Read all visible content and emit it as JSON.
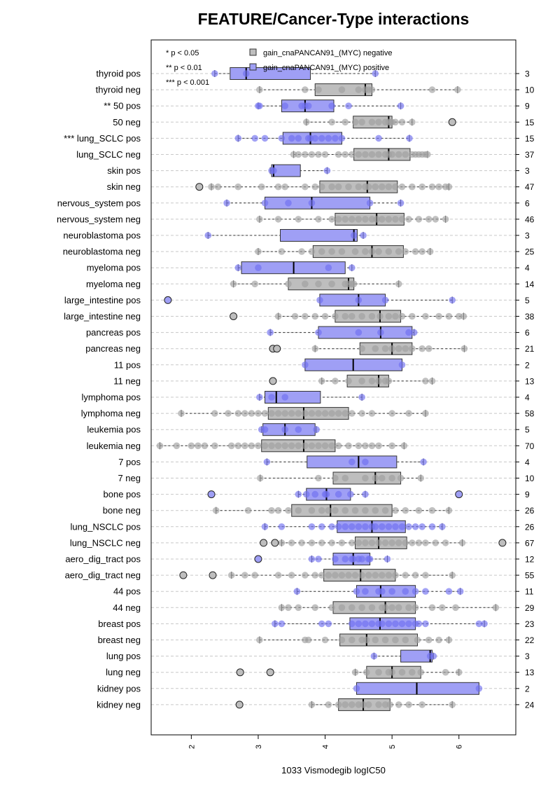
{
  "chart_data": {
    "type": "boxplot",
    "title": "FEATURE/Cancer-Type interactions",
    "xlabel": "1033 Vismodegib logIC50",
    "xlim": [
      1.4,
      6.85
    ],
    "xticks": [
      2,
      3,
      4,
      5,
      6
    ],
    "grid": "horizontal dashed",
    "colors": {
      "pos_fill": "#9f9ff5",
      "pos_point": "#7070f0",
      "neg_fill": "#bebebe",
      "neg_point": "#a0a0a0"
    },
    "significance_legend": [
      "* p < 0.05",
      "** p < 0.01",
      "*** p < 0.001"
    ],
    "series_legend": [
      {
        "label": "gain_cnaPANCAN91_(MYC) negative",
        "color": "#bebebe"
      },
      {
        "label": "gain_cnaPANCAN91_(MYC) positive",
        "color": "#9f9ff5"
      }
    ],
    "rows": [
      {
        "label": "thyroid pos",
        "group": "pos",
        "n": 3,
        "q1": 2.58,
        "median": 2.82,
        "q3": 3.78,
        "wlo": 2.35,
        "whi": 4.75,
        "points": [
          2.35,
          2.82,
          4.75
        ],
        "outliers": []
      },
      {
        "label": "thyroid neg",
        "group": "neg",
        "n": 10,
        "q1": 3.85,
        "median": 4.6,
        "q3": 4.7,
        "wlo": 3.02,
        "whi": 5.98,
        "points": [
          3.02,
          3.7,
          3.9,
          4.25,
          4.5,
          4.6,
          4.65,
          4.7,
          5.6,
          5.98
        ],
        "outliers": []
      },
      {
        "label": "** 50 pos",
        "group": "pos",
        "n": 9,
        "q1": 3.35,
        "median": 3.7,
        "q3": 4.13,
        "wlo": 3.0,
        "whi": 5.13,
        "points": [
          3.0,
          3.02,
          3.4,
          3.65,
          3.7,
          3.75,
          4.1,
          4.35,
          5.13
        ],
        "outliers": []
      },
      {
        "label": "50 neg",
        "group": "neg",
        "n": 15,
        "q1": 4.42,
        "median": 4.95,
        "q3": 5.0,
        "wlo": 3.72,
        "whi": 5.3,
        "points": [
          3.72,
          4.1,
          4.3,
          4.45,
          4.55,
          4.7,
          4.8,
          4.9,
          4.95,
          4.98,
          5.0,
          5.05,
          5.15,
          5.3
        ],
        "outliers": [
          5.9
        ]
      },
      {
        "label": "*** lung_SCLC pos",
        "group": "pos",
        "n": 15,
        "q1": 3.37,
        "median": 3.78,
        "q3": 4.25,
        "wlo": 2.7,
        "whi": 5.26,
        "points": [
          2.7,
          2.95,
          3.1,
          3.35,
          3.5,
          3.6,
          3.75,
          3.78,
          3.85,
          3.95,
          4.05,
          4.15,
          4.25,
          4.8,
          5.26
        ],
        "outliers": []
      },
      {
        "label": "lung_SCLC neg",
        "group": "neg",
        "n": 37,
        "q1": 4.43,
        "median": 4.95,
        "q3": 5.27,
        "wlo": 3.53,
        "whi": 5.53,
        "points": [
          3.53,
          3.6,
          3.7,
          3.8,
          3.9,
          4.0,
          4.2,
          4.3,
          4.4,
          4.5,
          4.6,
          4.7,
          4.8,
          4.9,
          4.95,
          5.0,
          5.1,
          5.2,
          5.3,
          5.35,
          5.4,
          5.45,
          5.5,
          5.53
        ],
        "outliers": []
      },
      {
        "label": "skin pos",
        "group": "pos",
        "n": 3,
        "q1": 3.2,
        "median": 3.23,
        "q3": 3.63,
        "wlo": 3.18,
        "whi": 4.03,
        "points": [
          3.2,
          3.23,
          4.03
        ],
        "outliers": []
      },
      {
        "label": "skin neg",
        "group": "neg",
        "n": 47,
        "q1": 3.92,
        "median": 4.63,
        "q3": 5.08,
        "wlo": 2.3,
        "whi": 5.85,
        "points": [
          2.3,
          2.4,
          2.7,
          3.05,
          3.3,
          3.4,
          3.7,
          3.85,
          3.95,
          4.1,
          4.2,
          4.35,
          4.5,
          4.6,
          4.65,
          4.75,
          4.85,
          4.95,
          5.05,
          5.15,
          5.3,
          5.45,
          5.6,
          5.7,
          5.8,
          5.85
        ],
        "outliers": [
          2.12
        ]
      },
      {
        "label": "nervous_system pos",
        "group": "pos",
        "n": 6,
        "q1": 3.1,
        "median": 3.8,
        "q3": 4.67,
        "wlo": 2.53,
        "whi": 5.13,
        "points": [
          2.53,
          3.1,
          3.45,
          3.8,
          4.67,
          5.13
        ],
        "outliers": []
      },
      {
        "label": "nervous_system neg",
        "group": "neg",
        "n": 46,
        "q1": 4.15,
        "median": 4.77,
        "q3": 5.18,
        "wlo": 3.02,
        "whi": 5.8,
        "points": [
          3.02,
          3.3,
          3.6,
          3.9,
          4.1,
          4.2,
          4.3,
          4.4,
          4.5,
          4.6,
          4.7,
          4.77,
          4.85,
          4.95,
          5.05,
          5.15,
          5.25,
          5.4,
          5.55,
          5.65,
          5.8
        ],
        "outliers": []
      },
      {
        "label": "neuroblastoma pos",
        "group": "pos",
        "n": 3,
        "q1": 3.33,
        "median": 4.43,
        "q3": 4.48,
        "wlo": 2.25,
        "whi": 4.57,
        "points": [
          2.25,
          4.43,
          4.57
        ],
        "outliers": []
      },
      {
        "label": "neuroblastoma neg",
        "group": "neg",
        "n": 25,
        "q1": 3.82,
        "median": 4.7,
        "q3": 5.17,
        "wlo": 3.0,
        "whi": 5.57,
        "points": [
          3.0,
          3.35,
          3.65,
          3.8,
          3.95,
          4.1,
          4.25,
          4.45,
          4.6,
          4.7,
          4.8,
          4.95,
          5.1,
          5.2,
          5.35,
          5.45,
          5.57
        ],
        "outliers": []
      },
      {
        "label": "myeloma pos",
        "group": "pos",
        "n": 4,
        "q1": 2.75,
        "median": 3.53,
        "q3": 4.3,
        "wlo": 2.7,
        "whi": 4.4,
        "points": [
          2.7,
          3.0,
          4.05,
          4.4
        ],
        "outliers": []
      },
      {
        "label": "myeloma neg",
        "group": "neg",
        "n": 14,
        "q1": 3.45,
        "median": 4.35,
        "q3": 4.43,
        "wlo": 2.63,
        "whi": 5.1,
        "points": [
          2.63,
          2.95,
          3.45,
          3.7,
          3.9,
          4.1,
          4.3,
          4.35,
          4.4,
          4.43,
          5.1
        ],
        "outliers": []
      },
      {
        "label": "large_intestine pos",
        "group": "pos",
        "n": 5,
        "q1": 3.92,
        "median": 4.5,
        "q3": 4.9,
        "wlo": 3.92,
        "whi": 5.9,
        "points": [
          3.92,
          4.5,
          4.9,
          5.9
        ],
        "outliers": [
          1.65
        ]
      },
      {
        "label": "large_intestine neg",
        "group": "neg",
        "n": 38,
        "q1": 4.15,
        "median": 4.82,
        "q3": 5.13,
        "wlo": 3.3,
        "whi": 6.07,
        "points": [
          3.3,
          3.55,
          3.7,
          3.85,
          4.0,
          4.15,
          4.3,
          4.4,
          4.55,
          4.7,
          4.82,
          4.95,
          5.05,
          5.15,
          5.3,
          5.5,
          5.7,
          5.85,
          6.0,
          6.07
        ],
        "outliers": [
          2.63
        ]
      },
      {
        "label": "pancreas pos",
        "group": "pos",
        "n": 6,
        "q1": 3.9,
        "median": 4.83,
        "q3": 5.3,
        "wlo": 3.18,
        "whi": 5.33,
        "points": [
          3.18,
          3.9,
          4.5,
          4.83,
          5.25,
          5.33
        ],
        "outliers": []
      },
      {
        "label": "pancreas neg",
        "group": "neg",
        "n": 21,
        "q1": 4.52,
        "median": 5.0,
        "q3": 5.3,
        "wlo": 3.85,
        "whi": 6.08,
        "points": [
          3.85,
          4.55,
          4.75,
          4.9,
          5.0,
          5.1,
          5.2,
          5.3,
          5.45,
          5.55,
          6.08
        ],
        "outliers": [
          3.22,
          3.28
        ]
      },
      {
        "label": "11 pos",
        "group": "pos",
        "n": 2,
        "q1": 3.7,
        "median": 4.42,
        "q3": 5.15,
        "wlo": 3.7,
        "whi": 5.15,
        "points": [
          3.7,
          5.15
        ],
        "outliers": []
      },
      {
        "label": "11 neg",
        "group": "neg",
        "n": 13,
        "q1": 4.33,
        "median": 4.8,
        "q3": 4.95,
        "wlo": 3.95,
        "whi": 5.6,
        "points": [
          3.95,
          4.15,
          4.35,
          4.55,
          4.7,
          4.8,
          4.9,
          4.95,
          5.5,
          5.6
        ],
        "outliers": [
          3.22
        ]
      },
      {
        "label": "lymphoma pos",
        "group": "pos",
        "n": 4,
        "q1": 3.1,
        "median": 3.27,
        "q3": 3.93,
        "wlo": 3.02,
        "whi": 4.55,
        "points": [
          3.02,
          3.2,
          3.4,
          4.55
        ],
        "outliers": []
      },
      {
        "label": "lymphoma neg",
        "group": "neg",
        "n": 58,
        "q1": 3.15,
        "median": 3.68,
        "q3": 4.35,
        "wlo": 1.85,
        "whi": 5.5,
        "points": [
          1.85,
          2.35,
          2.55,
          2.7,
          2.8,
          2.9,
          3.0,
          3.1,
          3.2,
          3.3,
          3.4,
          3.5,
          3.6,
          3.7,
          3.8,
          3.9,
          4.0,
          4.1,
          4.2,
          4.3,
          4.4,
          4.55,
          4.7,
          5.0,
          5.25,
          5.5
        ],
        "outliers": []
      },
      {
        "label": "leukemia pos",
        "group": "pos",
        "n": 5,
        "q1": 3.07,
        "median": 3.4,
        "q3": 3.85,
        "wlo": 3.05,
        "whi": 3.87,
        "points": [
          3.05,
          3.1,
          3.4,
          3.6,
          3.87
        ],
        "outliers": []
      },
      {
        "label": "leukemia neg",
        "group": "neg",
        "n": 70,
        "q1": 3.05,
        "median": 3.68,
        "q3": 4.15,
        "wlo": 1.53,
        "whi": 5.18,
        "points": [
          1.53,
          1.78,
          2.0,
          2.1,
          2.2,
          2.35,
          2.6,
          2.7,
          2.8,
          2.9,
          3.0,
          3.1,
          3.2,
          3.3,
          3.4,
          3.5,
          3.6,
          3.7,
          3.8,
          3.9,
          4.0,
          4.1,
          4.2,
          4.35,
          4.5,
          4.6,
          4.7,
          4.8,
          5.0,
          5.18
        ],
        "outliers": []
      },
      {
        "label": "7 pos",
        "group": "pos",
        "n": 4,
        "q1": 3.73,
        "median": 4.5,
        "q3": 5.07,
        "wlo": 3.13,
        "whi": 5.47,
        "points": [
          3.13,
          4.4,
          4.6,
          5.47
        ],
        "outliers": []
      },
      {
        "label": "7 neg",
        "group": "neg",
        "n": 10,
        "q1": 4.12,
        "median": 4.75,
        "q3": 5.13,
        "wlo": 3.03,
        "whi": 5.43,
        "points": [
          3.03,
          3.9,
          4.15,
          4.3,
          4.6,
          4.75,
          4.85,
          5.0,
          5.13,
          5.43
        ],
        "outliers": []
      },
      {
        "label": "bone pos",
        "group": "pos",
        "n": 9,
        "q1": 3.72,
        "median": 4.02,
        "q3": 4.38,
        "wlo": 3.6,
        "whi": 4.6,
        "points": [
          3.6,
          3.72,
          3.85,
          4.0,
          4.02,
          4.2,
          4.38,
          4.6
        ],
        "outliers": [
          2.3,
          6.0
        ]
      },
      {
        "label": "bone neg",
        "group": "neg",
        "n": 26,
        "q1": 3.5,
        "median": 4.08,
        "q3": 5.0,
        "wlo": 2.37,
        "whi": 5.85,
        "points": [
          2.37,
          2.85,
          3.2,
          3.3,
          3.45,
          3.6,
          3.8,
          3.95,
          4.05,
          4.15,
          4.3,
          4.45,
          4.6,
          4.75,
          4.9,
          5.05,
          5.2,
          5.4,
          5.6,
          5.85
        ],
        "outliers": []
      },
      {
        "label": "lung_NSCLC pos",
        "group": "pos",
        "n": 26,
        "q1": 4.18,
        "median": 4.7,
        "q3": 5.2,
        "wlo": 3.1,
        "whi": 5.75,
        "points": [
          3.1,
          3.35,
          3.8,
          3.95,
          4.1,
          4.2,
          4.3,
          4.4,
          4.5,
          4.6,
          4.7,
          4.75,
          4.85,
          4.95,
          5.05,
          5.15,
          5.25,
          5.35,
          5.45,
          5.6,
          5.75
        ],
        "outliers": []
      },
      {
        "label": "lung_NSCLC neg",
        "group": "neg",
        "n": 67,
        "q1": 4.45,
        "median": 4.8,
        "q3": 5.22,
        "wlo": 3.35,
        "whi": 6.05,
        "points": [
          3.35,
          3.5,
          3.65,
          3.8,
          3.95,
          4.1,
          4.25,
          4.4,
          4.5,
          4.6,
          4.7,
          4.8,
          4.9,
          5.0,
          5.1,
          5.2,
          5.3,
          5.4,
          5.5,
          5.65,
          5.8,
          6.05
        ],
        "outliers": [
          3.08,
          3.25,
          6.65
        ]
      },
      {
        "label": "aero_dig_tract pos",
        "group": "pos",
        "n": 12,
        "q1": 4.12,
        "median": 4.42,
        "q3": 4.67,
        "wlo": 3.8,
        "whi": 4.93,
        "points": [
          3.8,
          3.9,
          4.15,
          4.3,
          4.4,
          4.42,
          4.5,
          4.55,
          4.65,
          4.67,
          4.93
        ],
        "outliers": [
          3.0
        ]
      },
      {
        "label": "aero_dig_tract neg",
        "group": "neg",
        "n": 55,
        "q1": 3.98,
        "median": 4.53,
        "q3": 5.05,
        "wlo": 2.6,
        "whi": 5.9,
        "points": [
          2.6,
          2.8,
          2.95,
          3.3,
          3.5,
          3.7,
          3.85,
          3.95,
          4.05,
          4.15,
          4.25,
          4.35,
          4.45,
          4.55,
          4.65,
          4.75,
          4.85,
          4.95,
          5.05,
          5.2,
          5.35,
          5.5,
          5.9
        ],
        "outliers": [
          1.88,
          2.32
        ]
      },
      {
        "label": "44 pos",
        "group": "pos",
        "n": 11,
        "q1": 4.47,
        "median": 4.83,
        "q3": 5.35,
        "wlo": 3.58,
        "whi": 6.02,
        "points": [
          3.58,
          4.47,
          4.6,
          4.8,
          4.85,
          5.0,
          5.2,
          5.35,
          5.5,
          5.85,
          6.02
        ],
        "outliers": []
      },
      {
        "label": "44 neg",
        "group": "neg",
        "n": 29,
        "q1": 4.12,
        "median": 4.9,
        "q3": 5.35,
        "wlo": 3.35,
        "whi": 6.55,
        "points": [
          3.35,
          3.45,
          3.6,
          3.85,
          4.1,
          4.25,
          4.4,
          4.55,
          4.7,
          4.85,
          4.9,
          5.0,
          5.1,
          5.25,
          5.35,
          5.6,
          5.75,
          5.95,
          6.55
        ],
        "outliers": []
      },
      {
        "label": "breast pos",
        "group": "pos",
        "n": 23,
        "q1": 4.37,
        "median": 4.82,
        "q3": 5.35,
        "wlo": 3.25,
        "whi": 6.38,
        "points": [
          3.25,
          3.35,
          3.95,
          4.05,
          4.4,
          4.5,
          4.6,
          4.7,
          4.8,
          4.85,
          4.95,
          5.05,
          5.15,
          5.25,
          5.35,
          5.4,
          5.5,
          6.3,
          6.38
        ],
        "outliers": []
      },
      {
        "label": "breast neg",
        "group": "neg",
        "n": 22,
        "q1": 4.22,
        "median": 4.62,
        "q3": 5.38,
        "wlo": 3.02,
        "whi": 5.85,
        "points": [
          3.02,
          3.7,
          3.75,
          4.0,
          4.25,
          4.4,
          4.55,
          4.62,
          4.75,
          4.9,
          5.05,
          5.2,
          5.38,
          5.55,
          5.7,
          5.85
        ],
        "outliers": []
      },
      {
        "label": "lung pos",
        "group": "pos",
        "n": 3,
        "q1": 5.13,
        "median": 5.57,
        "q3": 5.6,
        "wlo": 4.73,
        "whi": 5.62,
        "points": [
          4.73,
          5.57,
          5.62
        ],
        "outliers": []
      },
      {
        "label": "lung neg",
        "group": "neg",
        "n": 13,
        "q1": 4.62,
        "median": 5.0,
        "q3": 5.43,
        "wlo": 4.45,
        "whi": 6.0,
        "points": [
          4.45,
          4.62,
          4.8,
          4.95,
          5.0,
          5.15,
          5.3,
          5.43,
          5.8,
          6.0
        ],
        "outliers": [
          2.73,
          3.18
        ]
      },
      {
        "label": "kidney pos",
        "group": "pos",
        "n": 2,
        "q1": 4.47,
        "median": 5.37,
        "q3": 6.3,
        "wlo": 4.47,
        "whi": 6.3,
        "points": [
          4.47,
          6.3
        ],
        "outliers": []
      },
      {
        "label": "kidney neg",
        "group": "neg",
        "n": 24,
        "q1": 4.2,
        "median": 4.57,
        "q3": 4.97,
        "wlo": 3.8,
        "whi": 5.9,
        "points": [
          3.8,
          4.05,
          4.2,
          4.3,
          4.4,
          4.5,
          4.57,
          4.65,
          4.8,
          4.9,
          4.97,
          5.1,
          5.25,
          5.45,
          5.9
        ],
        "outliers": [
          2.72
        ]
      }
    ]
  }
}
